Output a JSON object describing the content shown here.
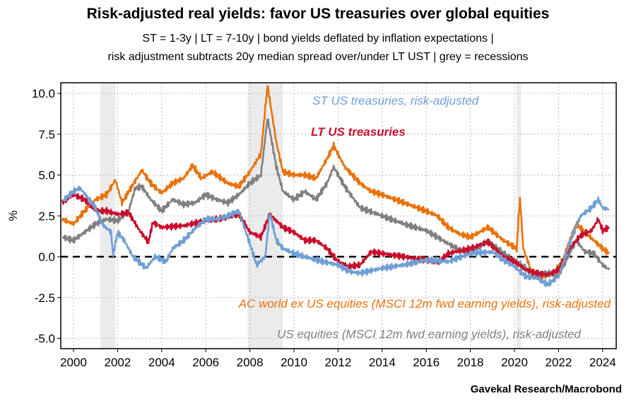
{
  "chart_data": {
    "type": "line",
    "title": "Risk-adjusted real yields: favor US treasuries over global equities",
    "subtitle_line1": "ST = 1-3y  |  LT = 7-10y  |  bond yields deflated by inflation expectations |",
    "subtitle_line2": "risk adjustment subtracts 20y median spread over/under LT UST | grey = recessions",
    "source": "Gavekal Research/Macrobond",
    "ylabel": "%",
    "xlim": [
      1999.4,
      2024.7
    ],
    "ylim": [
      -5.6,
      10.6
    ],
    "yticks": [
      10,
      7.5,
      5,
      2.5,
      0,
      -2.5,
      -5
    ],
    "ytick_labels": [
      "10.0",
      "7.5",
      "5.0",
      "2.5",
      "0.0",
      "-2.5",
      "-5.0"
    ],
    "xticks": [
      2000,
      2002,
      2004,
      2006,
      2008,
      2010,
      2012,
      2014,
      2016,
      2018,
      2020,
      2022,
      2024
    ],
    "xtick_labels": [
      "2000",
      "2002",
      "2004",
      "2006",
      "2008",
      "2010",
      "2012",
      "2014",
      "2016",
      "2018",
      "2020",
      "2022",
      "2024"
    ],
    "grid": true,
    "zero_line": true,
    "recessions": [
      [
        2001.2,
        2001.9
      ],
      [
        2007.9,
        2009.5
      ],
      [
        2020.1,
        2020.3
      ]
    ],
    "series": [
      {
        "name": "AC world ex US equities (MSCI 12m fwd earning yields), risk-adjusted",
        "color": "#e8720c",
        "x": [
          1999.5,
          2000,
          2000.5,
          2001,
          2001.5,
          2001.9,
          2002.2,
          2002.6,
          2003.1,
          2003.5,
          2004,
          2004.5,
          2005,
          2005.4,
          2005.8,
          2006.3,
          2006.7,
          2007,
          2007.5,
          2008,
          2008.5,
          2008.8,
          2009.2,
          2009.5,
          2010,
          2010.5,
          2011,
          2011.5,
          2011.8,
          2012.3,
          2013,
          2013.5,
          2014,
          2015,
          2016,
          2016.5,
          2017,
          2017.5,
          2018,
          2018.8,
          2019.5,
          2020.1,
          2020.25,
          2020.4,
          2020.8,
          2021.2,
          2021.8,
          2022.2,
          2022.5,
          2022.8,
          2023.2,
          2023.6,
          2024,
          2024.3
        ],
        "y": [
          2.3,
          2.0,
          2.8,
          3.5,
          3.8,
          4.7,
          3.3,
          4.2,
          5.3,
          4.5,
          3.9,
          4.5,
          4.8,
          5.6,
          4.8,
          5.2,
          4.8,
          4.5,
          4.3,
          5.2,
          6.3,
          10.5,
          7.0,
          5.2,
          5.0,
          5.0,
          4.8,
          6.0,
          6.8,
          5.5,
          4.5,
          4.0,
          3.8,
          3.3,
          2.8,
          2.5,
          1.8,
          1.4,
          1.2,
          1.8,
          1.0,
          0.5,
          3.6,
          0.5,
          -1.0,
          -1.3,
          -1.0,
          -0.2,
          1.0,
          2.0,
          1.5,
          1.0,
          0.5,
          0.2
        ]
      },
      {
        "name": "US equities (MSCI 12m fwd earning yields), risk-adjusted",
        "color": "#808080",
        "x": [
          1999.5,
          2000,
          2000.5,
          2001,
          2001.5,
          2002,
          2002.5,
          2002.8,
          2003.1,
          2003.5,
          2004,
          2004.5,
          2005,
          2005.5,
          2006,
          2006.5,
          2007,
          2007.5,
          2008,
          2008.5,
          2008.8,
          2009.2,
          2009.5,
          2010,
          2010.5,
          2011,
          2011.5,
          2011.8,
          2012.3,
          2013,
          2014,
          2015,
          2016,
          2016.5,
          2017,
          2017.5,
          2018,
          2018.8,
          2019.5,
          2020.1,
          2020.5,
          2021,
          2021.5,
          2022,
          2022.5,
          2022.8,
          2023.2,
          2023.6,
          2024,
          2024.3
        ],
        "y": [
          1.2,
          1.0,
          1.5,
          2.0,
          2.3,
          2.2,
          2.8,
          4.2,
          4.3,
          3.5,
          2.8,
          3.5,
          3.2,
          3.3,
          3.8,
          3.5,
          3.3,
          3.8,
          4.5,
          5.0,
          8.5,
          5.5,
          4.0,
          3.5,
          4.0,
          3.5,
          4.5,
          5.5,
          4.3,
          3.0,
          2.5,
          2.0,
          1.6,
          1.2,
          0.8,
          0.4,
          0.2,
          1.0,
          0.2,
          -0.3,
          -0.7,
          -1.2,
          -1.0,
          -1.2,
          0.2,
          1.0,
          0.3,
          0.2,
          -0.5,
          -0.8
        ]
      },
      {
        "name": "LT US treasuries",
        "color": "#c8102e",
        "x": [
          1999.5,
          2000,
          2000.5,
          2001,
          2001.5,
          2002,
          2002.5,
          2003,
          2003.4,
          2003.6,
          2004,
          2005,
          2006,
          2007,
          2007.5,
          2008,
          2008.5,
          2008.9,
          2009.5,
          2010,
          2010.5,
          2011,
          2011.5,
          2012,
          2012.5,
          2013,
          2013.5,
          2014,
          2015,
          2016,
          2016.5,
          2017,
          2018,
          2018.8,
          2019.5,
          2020,
          2020.5,
          2021,
          2021.5,
          2022,
          2022.5,
          2023,
          2023.5,
          2023.8,
          2024,
          2024.3
        ],
        "y": [
          3.3,
          3.8,
          3.5,
          2.8,
          2.8,
          2.6,
          2.7,
          1.6,
          0.9,
          2.1,
          1.8,
          1.9,
          2.2,
          2.4,
          2.6,
          1.5,
          1.2,
          2.6,
          1.8,
          1.5,
          1.0,
          1.0,
          0.5,
          -0.3,
          -0.6,
          -0.5,
          0.3,
          0.2,
          0.0,
          -0.2,
          -0.4,
          0.2,
          0.5,
          0.9,
          0.0,
          -0.3,
          -0.8,
          -1.0,
          -1.1,
          -0.8,
          0.5,
          1.3,
          1.6,
          2.3,
          1.6,
          1.8
        ]
      },
      {
        "name": "ST US treasuries, risk-adjusted",
        "color": "#6f9fd4",
        "x": [
          1999.5,
          2000,
          2000.3,
          2001,
          2001.3,
          2001.7,
          2001.8,
          2002,
          2002.3,
          2002.7,
          2003.3,
          2003.7,
          2004.2,
          2004.5,
          2005,
          2005.5,
          2006,
          2006.5,
          2007,
          2007.5,
          2008,
          2008.3,
          2008.7,
          2008.9,
          2009.2,
          2009.5,
          2010,
          2011,
          2012,
          2012.5,
          2013,
          2014,
          2015,
          2016,
          2017,
          2018,
          2019,
          2019.5,
          2020,
          2020.5,
          2021,
          2021.5,
          2022,
          2022.5,
          2023,
          2023.5,
          2023.8,
          2024,
          2024.3
        ],
        "y": [
          3.4,
          4.0,
          4.2,
          3.0,
          2.0,
          1.5,
          0.1,
          1.5,
          1.0,
          0.0,
          -0.7,
          0.0,
          -0.3,
          0.5,
          1.0,
          1.7,
          2.3,
          2.3,
          2.5,
          2.8,
          0.8,
          -0.5,
          0.0,
          2.7,
          1.0,
          0.5,
          0.2,
          -0.2,
          -0.5,
          -0.9,
          -1.0,
          -0.7,
          -0.5,
          -0.2,
          -0.3,
          0.2,
          0.3,
          -0.2,
          -0.6,
          -1.2,
          -1.3,
          -1.7,
          -1.2,
          0.8,
          2.5,
          3.0,
          3.5,
          3.0,
          2.9
        ]
      }
    ]
  }
}
